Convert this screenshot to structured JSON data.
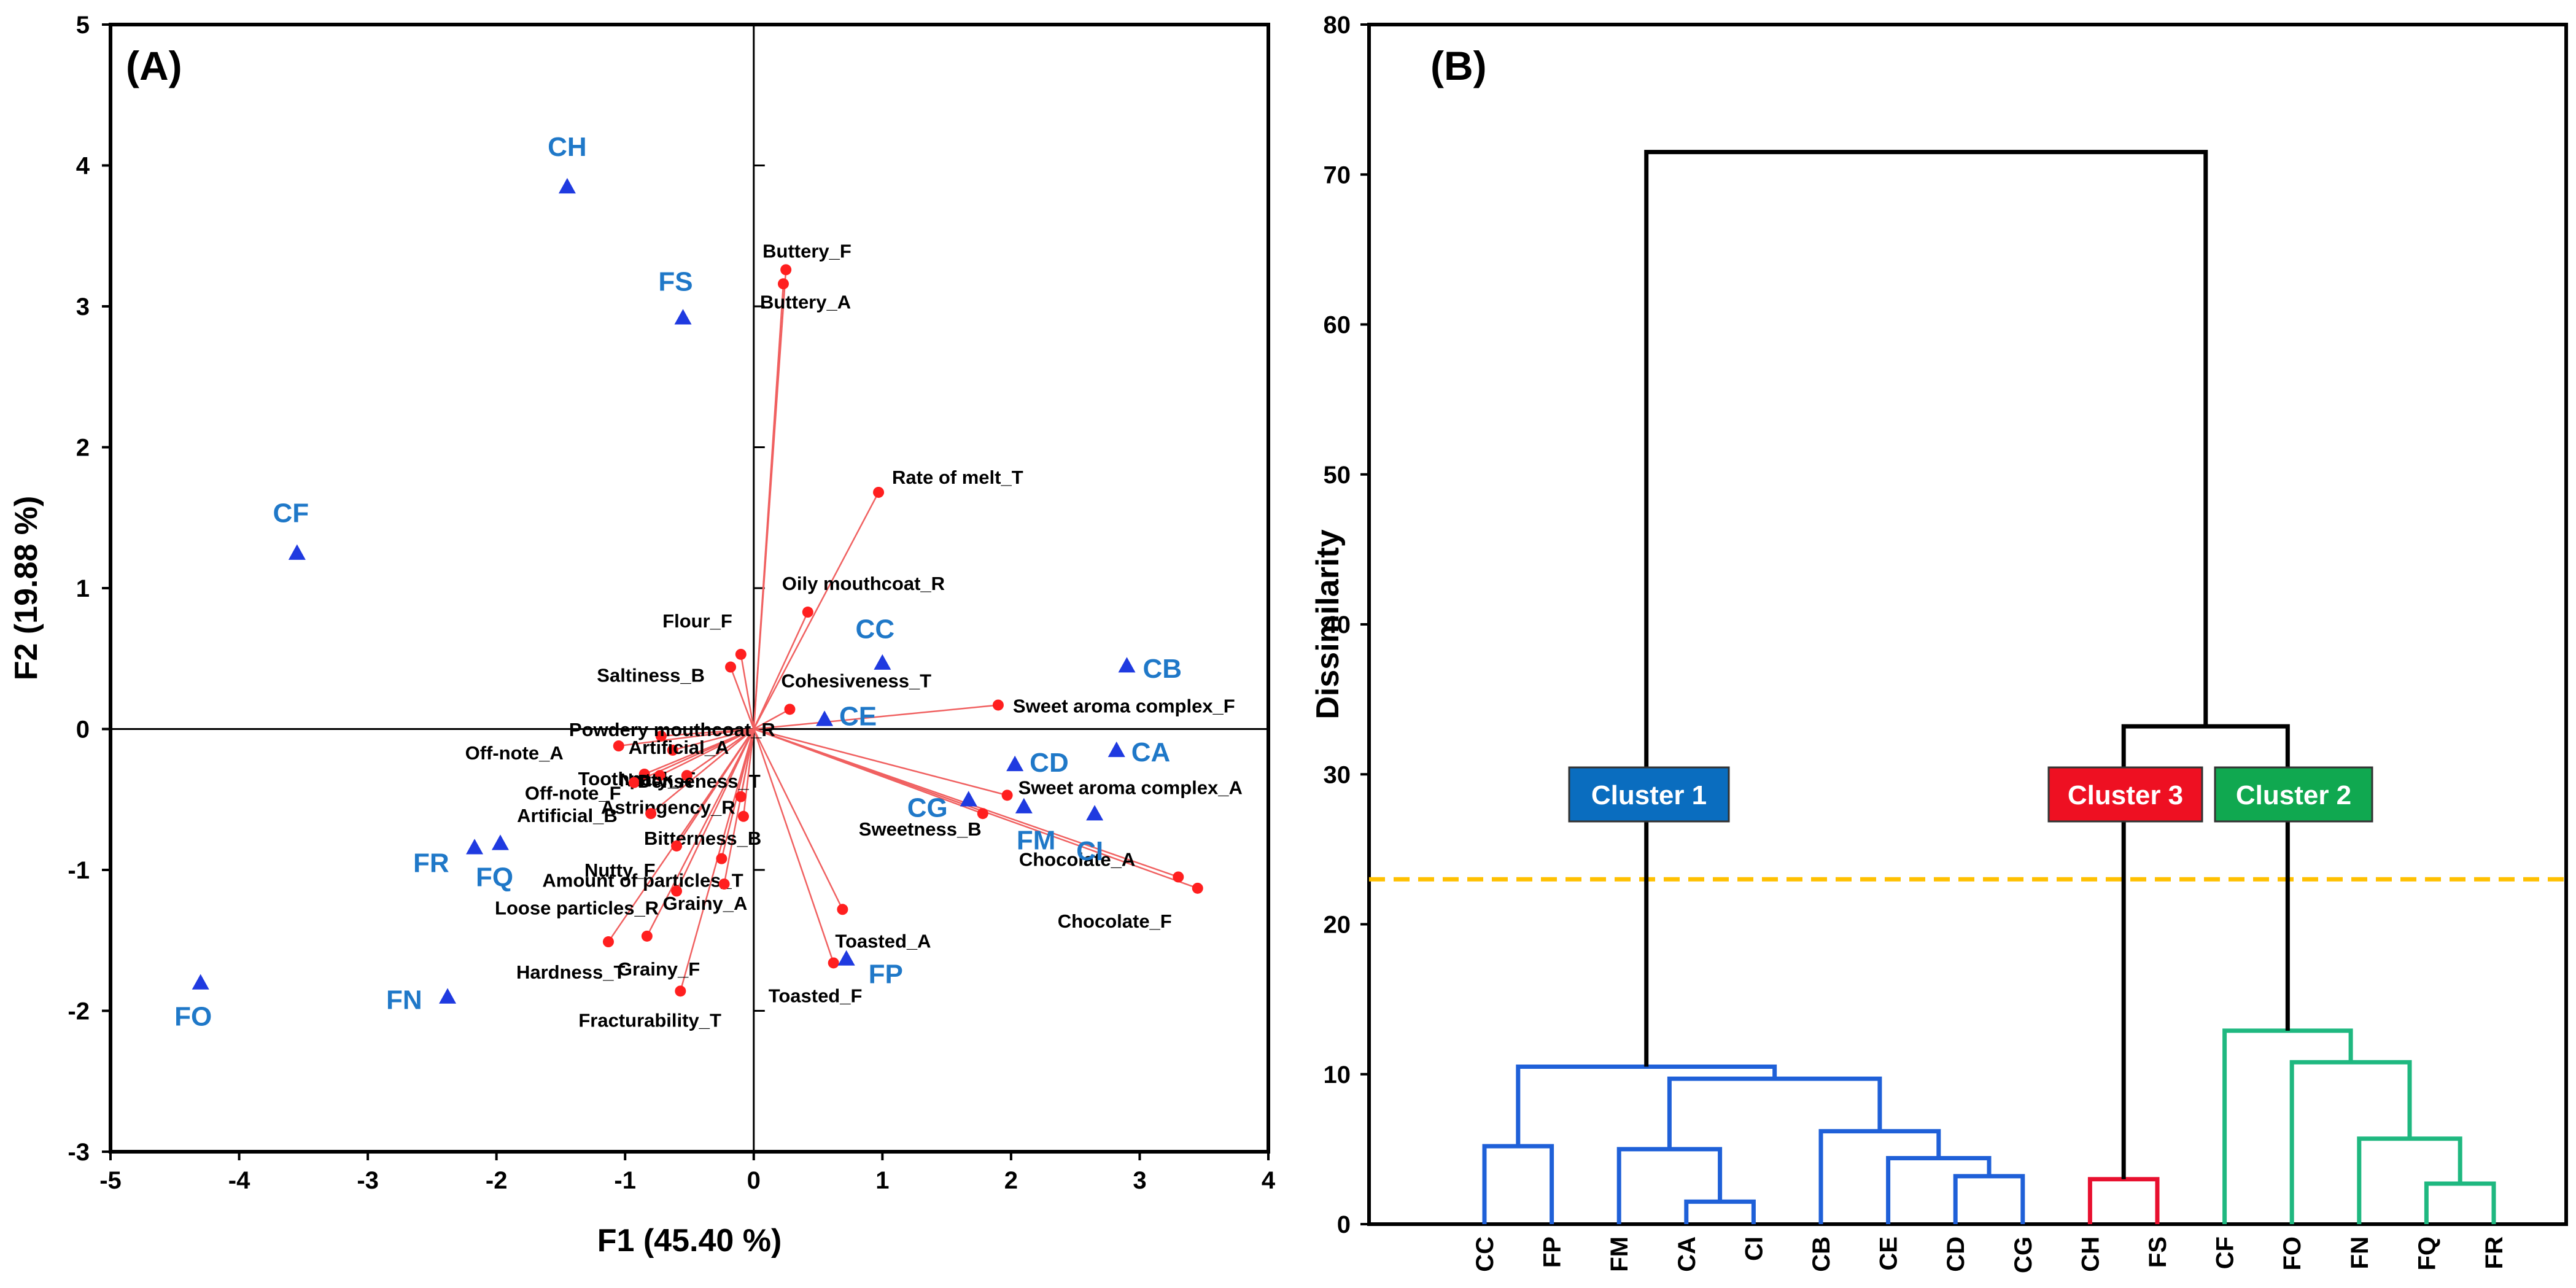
{
  "chart_data": [
    {
      "type": "scatter",
      "panel_label": "(A)",
      "xlabel": "F1 (45.40 %)",
      "ylabel": "F2 (19.88 %)",
      "xlim": [
        -5,
        4
      ],
      "ylim": [
        -3,
        5
      ],
      "xticks": [
        "-5",
        "-4",
        "-3",
        "-2",
        "-1",
        "0",
        "1",
        "2",
        "3",
        "4"
      ],
      "yticks": [
        "-3",
        "-2",
        "-1",
        "0",
        "1",
        "2",
        "3",
        "4",
        "5"
      ],
      "grid": false,
      "colors": {
        "observations": "#1f3ae0",
        "observation_labels": "#1f78c8",
        "variables": "#ff1f1f",
        "vectors": "#f06060"
      },
      "observations": [
        {
          "label": "CH",
          "x": -1.45,
          "y": 3.85
        },
        {
          "label": "FS",
          "x": -0.55,
          "y": 2.92
        },
        {
          "label": "CF",
          "x": -3.55,
          "y": 1.25
        },
        {
          "label": "CC",
          "x": 1.0,
          "y": 0.47
        },
        {
          "label": "CB",
          "x": 2.9,
          "y": 0.45
        },
        {
          "label": "CE",
          "x": 0.55,
          "y": 0.07
        },
        {
          "label": "CA",
          "x": 2.82,
          "y": -0.15
        },
        {
          "label": "CD",
          "x": 2.03,
          "y": -0.25
        },
        {
          "label": "CG",
          "x": 1.67,
          "y": -0.5
        },
        {
          "label": "FM",
          "x": 2.1,
          "y": -0.55
        },
        {
          "label": "CI",
          "x": 2.65,
          "y": -0.6
        },
        {
          "label": "FR",
          "x": -2.17,
          "y": -0.84
        },
        {
          "label": "FQ",
          "x": -1.97,
          "y": -0.81
        },
        {
          "label": "FP",
          "x": 0.72,
          "y": -1.63
        },
        {
          "label": "FO",
          "x": -4.3,
          "y": -1.8
        },
        {
          "label": "FN",
          "x": -2.38,
          "y": -1.9
        }
      ],
      "variables": [
        {
          "label": "Buttery_F",
          "x": 0.25,
          "y": 3.26
        },
        {
          "label": "Buttery_A",
          "x": 0.23,
          "y": 3.16
        },
        {
          "label": "Rate of melt_T",
          "x": 0.97,
          "y": 1.68
        },
        {
          "label": "Oily mouthcoat_R",
          "x": 0.42,
          "y": 0.83
        },
        {
          "label": "Flour_F",
          "x": -0.1,
          "y": 0.53
        },
        {
          "label": "Saltiness_B",
          "x": -0.18,
          "y": 0.44
        },
        {
          "label": "Cohesiveness_T",
          "x": 0.28,
          "y": 0.14
        },
        {
          "label": "Sweet aroma complex_F",
          "x": 1.9,
          "y": 0.17
        },
        {
          "label": "Powdery mouthcoat_R",
          "x": -0.72,
          "y": -0.05
        },
        {
          "label": "Off-note_A",
          "x": -1.05,
          "y": -0.12
        },
        {
          "label": "Artificial_A",
          "x": -0.63,
          "y": -0.15
        },
        {
          "label": "Toothpack_T",
          "x": -0.85,
          "y": -0.32
        },
        {
          "label": "Nutty_A",
          "x": -0.73,
          "y": -0.33
        },
        {
          "label": "Off-note_F",
          "x": -0.93,
          "y": -0.38
        },
        {
          "label": "Denseness_T",
          "x": -0.52,
          "y": -0.33
        },
        {
          "label": "Astringency_R",
          "x": -0.1,
          "y": -0.48
        },
        {
          "label": "Artificial_B",
          "x": -0.8,
          "y": -0.6
        },
        {
          "label": "Bitterness_B",
          "x": -0.08,
          "y": -0.62
        },
        {
          "label": "Sweet aroma complex_A",
          "x": 1.97,
          "y": -0.47
        },
        {
          "label": "Sweetness_B",
          "x": 1.78,
          "y": -0.6
        },
        {
          "label": "Nutty_F",
          "x": -0.6,
          "y": -0.83
        },
        {
          "label": "Amount of particles_T",
          "x": -0.25,
          "y": -0.92
        },
        {
          "label": "Chocolate_A",
          "x": 3.3,
          "y": -1.05
        },
        {
          "label": "Chocolate_F",
          "x": 3.45,
          "y": -1.13
        },
        {
          "label": "Loose particles_R",
          "x": -0.6,
          "y": -1.15
        },
        {
          "label": "Grainy_A",
          "x": -0.23,
          "y": -1.1
        },
        {
          "label": "Toasted_A",
          "x": 0.69,
          "y": -1.28
        },
        {
          "label": "Hardness_T",
          "x": -1.13,
          "y": -1.51
        },
        {
          "label": "Grainy_F",
          "x": -0.83,
          "y": -1.47
        },
        {
          "label": "Toasted_F",
          "x": 0.62,
          "y": -1.66
        },
        {
          "label": "Fracturability_T",
          "x": -0.57,
          "y": -1.86
        }
      ]
    },
    {
      "type": "dendrogram",
      "panel_label": "(B)",
      "ylabel": "Dissimilarity",
      "ylim": [
        0,
        80
      ],
      "yticks": [
        "0",
        "10",
        "20",
        "30",
        "40",
        "50",
        "60",
        "70",
        "80"
      ],
      "truncation_level": 23,
      "truncation_color": "#ffc000",
      "leaves": [
        "CC",
        "FP",
        "FM",
        "CA",
        "CI",
        "CB",
        "CE",
        "CD",
        "CG",
        "CH",
        "FS",
        "CF",
        "FO",
        "FN",
        "FQ",
        "FR"
      ],
      "merges": [
        {
          "a": "leaf:CA",
          "b": "leaf:CI",
          "height": 1.5,
          "cluster": 1
        },
        {
          "a": "leaf:CD",
          "b": "leaf:CG",
          "height": 3.2,
          "cluster": 1
        },
        {
          "a": "leaf:CE",
          "b": "m2",
          "height": 4.4,
          "cluster": 1
        },
        {
          "a": "leaf:CB",
          "b": "m3",
          "height": 6.2,
          "cluster": 1
        },
        {
          "a": "leaf:FM",
          "b": "m1",
          "height": 5.0,
          "cluster": 1
        },
        {
          "a": "m5",
          "b": "m4",
          "height": 9.7,
          "cluster": 1
        },
        {
          "a": "leaf:CC",
          "b": "leaf:FP",
          "height": 5.2,
          "cluster": 1
        },
        {
          "a": "m7",
          "b": "m6",
          "height": 10.5,
          "cluster": 1
        },
        {
          "a": "leaf:CH",
          "b": "leaf:FS",
          "height": 3.0,
          "cluster": 3
        },
        {
          "a": "leaf:FQ",
          "b": "leaf:FR",
          "height": 2.7,
          "cluster": 2
        },
        {
          "a": "leaf:FN",
          "b": "m10",
          "height": 5.7,
          "cluster": 2
        },
        {
          "a": "leaf:FO",
          "b": "m11",
          "height": 10.8,
          "cluster": 2
        },
        {
          "a": "leaf:CF",
          "b": "m12",
          "height": 12.9,
          "cluster": 2
        },
        {
          "a": "m9",
          "b": "m13",
          "height": 33.2,
          "cluster": 0
        },
        {
          "a": "m8",
          "b": "m14",
          "height": 71.5,
          "cluster": 0
        }
      ],
      "clusters": [
        {
          "id": 1,
          "name": "Cluster 1",
          "color": "#1f60d8",
          "label_bg": "#0a6dbf"
        },
        {
          "id": 3,
          "name": "Cluster 3",
          "color": "#e8102f",
          "label_bg": "#ee1022"
        },
        {
          "id": 2,
          "name": "Cluster 2",
          "color": "#1fb880",
          "label_bg": "#10a850"
        }
      ],
      "trunk_color": "#000000"
    }
  ]
}
